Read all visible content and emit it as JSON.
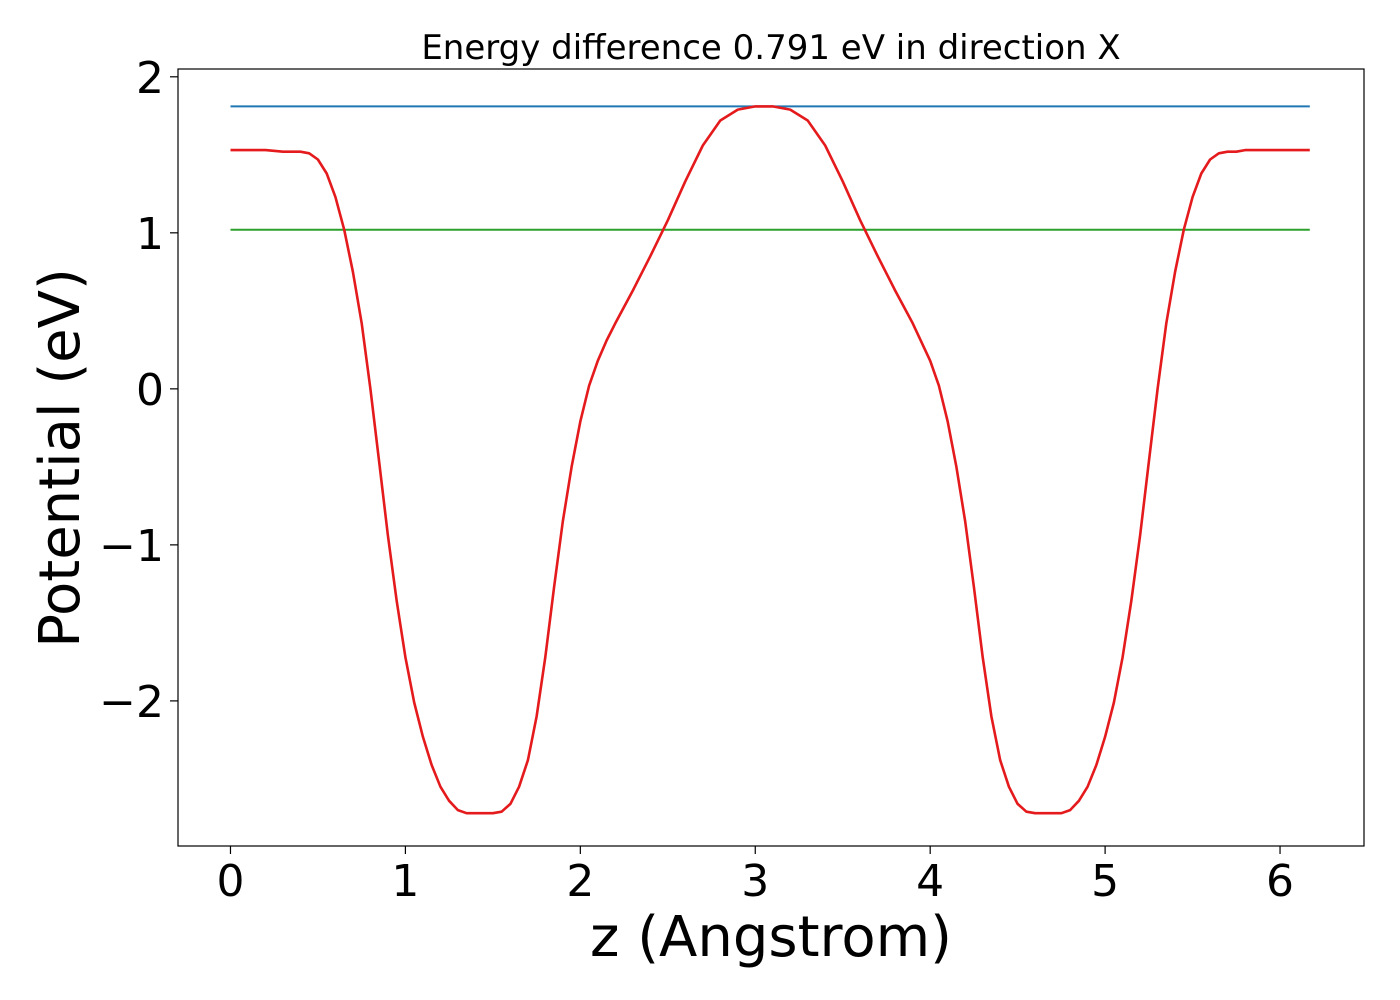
{
  "chart_data": {
    "type": "line",
    "title": "Energy difference 0.791 eV in direction X",
    "xlabel": "z (Angstrom)",
    "ylabel": "Potential (eV)",
    "xlim": [
      -0.3,
      6.48
    ],
    "ylim": [
      -2.93,
      2.05
    ],
    "x_ticks": [
      0,
      1,
      2,
      3,
      4,
      5,
      6
    ],
    "x_tick_labels": [
      "0",
      "1",
      "2",
      "3",
      "4",
      "5",
      "6"
    ],
    "y_ticks": [
      -2,
      -1,
      0,
      1,
      2
    ],
    "y_tick_labels": [
      "−2",
      "−1",
      "0",
      "1",
      "2"
    ],
    "grid": false,
    "series": [
      {
        "color": "#1f77b4",
        "x": [
          0,
          6.17
        ],
        "y": [
          1.81,
          1.81
        ]
      },
      {
        "color": "#2ca02c",
        "x": [
          0,
          6.17
        ],
        "y": [
          1.02,
          1.02
        ]
      },
      {
        "color": "#e41a1c",
        "x": [
          0,
          0.1,
          0.2,
          0.3,
          0.4,
          0.45,
          0.5,
          0.55,
          0.6,
          0.65,
          0.7,
          0.75,
          0.8,
          0.85,
          0.9,
          0.95,
          1.0,
          1.05,
          1.1,
          1.15,
          1.2,
          1.25,
          1.3,
          1.35,
          1.4,
          1.45,
          1.5,
          1.55,
          1.6,
          1.65,
          1.7,
          1.75,
          1.8,
          1.85,
          1.9,
          1.95,
          2.0,
          2.05,
          2.1,
          2.15,
          2.2,
          2.3,
          2.4,
          2.5,
          2.6,
          2.7,
          2.8,
          2.9,
          3.0,
          3.1,
          3.2,
          3.3,
          3.4,
          3.5,
          3.6,
          3.7,
          3.8,
          3.9,
          4.0,
          4.05,
          4.1,
          4.15,
          4.2,
          4.25,
          4.3,
          4.35,
          4.4,
          4.45,
          4.5,
          4.55,
          4.6,
          4.65,
          4.7,
          4.75,
          4.8,
          4.85,
          4.9,
          4.95,
          5.0,
          5.05,
          5.1,
          5.15,
          5.2,
          5.25,
          5.3,
          5.35,
          5.4,
          5.45,
          5.5,
          5.55,
          5.6,
          5.65,
          5.7,
          5.75,
          5.8,
          5.9,
          6.0,
          6.1,
          6.17
        ],
        "y": [
          1.53,
          1.53,
          1.53,
          1.52,
          1.52,
          1.51,
          1.47,
          1.38,
          1.23,
          1.02,
          0.75,
          0.42,
          0.0,
          -0.47,
          -0.94,
          -1.36,
          -1.72,
          -2.01,
          -2.23,
          -2.41,
          -2.55,
          -2.64,
          -2.7,
          -2.72,
          -2.72,
          -2.72,
          -2.72,
          -2.71,
          -2.66,
          -2.55,
          -2.38,
          -2.1,
          -1.72,
          -1.27,
          -0.85,
          -0.5,
          -0.21,
          0.02,
          0.18,
          0.31,
          0.42,
          0.63,
          0.85,
          1.08,
          1.33,
          1.56,
          1.72,
          1.79,
          1.81,
          1.81,
          1.79,
          1.72,
          1.56,
          1.33,
          1.08,
          0.85,
          0.63,
          0.42,
          0.18,
          0.02,
          -0.21,
          -0.5,
          -0.85,
          -1.27,
          -1.72,
          -2.1,
          -2.38,
          -2.55,
          -2.66,
          -2.71,
          -2.72,
          -2.72,
          -2.72,
          -2.72,
          -2.7,
          -2.64,
          -2.55,
          -2.41,
          -2.23,
          -2.01,
          -1.72,
          -1.36,
          -0.94,
          -0.47,
          0.0,
          0.42,
          0.75,
          1.02,
          1.23,
          1.38,
          1.47,
          1.51,
          1.52,
          1.52,
          1.53,
          1.53,
          1.53,
          1.53,
          1.53
        ]
      }
    ]
  }
}
